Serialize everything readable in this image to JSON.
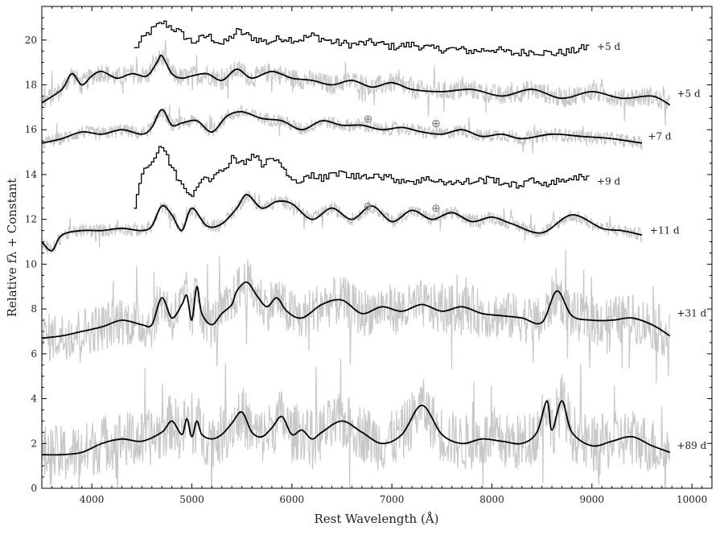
{
  "chart_data": {
    "type": "line",
    "xlabel": "Rest Wavelength (Å)",
    "ylabel": "Relative fλ + Constant",
    "xlim": [
      3500,
      10200
    ],
    "ylim": [
      0,
      21.5
    ],
    "x_ticks": [
      4000,
      5000,
      6000,
      7000,
      8000,
      9000,
      10000
    ],
    "x_tick_labels": [
      "4000",
      "5000",
      "6000",
      "7000",
      "8000",
      "9000",
      "10000"
    ],
    "y_ticks": [
      0,
      2,
      4,
      6,
      8,
      10,
      12,
      14,
      16,
      18,
      20
    ],
    "y_tick_labels": [
      "0",
      "2",
      "4",
      "6",
      "8",
      "10",
      "12",
      "14",
      "16",
      "18",
      "20"
    ],
    "grid": false,
    "colors": {
      "smoothed": "#000000",
      "raw": "#c8c8c8",
      "telluric": "#888888"
    },
    "telluric_marker": "⊕",
    "series": [
      {
        "label": "+5 d",
        "style": "step",
        "label_at": [
          9050,
          19.7
        ],
        "x": [
          4420,
          4550,
          4700,
          4850,
          5000,
          5150,
          5300,
          5450,
          5600,
          5750,
          5900,
          6050,
          6200,
          6400,
          6600,
          6800,
          7000,
          7200,
          7400,
          7600,
          7800,
          8000,
          8200,
          8400,
          8600,
          8800,
          8950
        ],
        "y": [
          19.6,
          20.3,
          20.8,
          20.4,
          19.9,
          20.2,
          19.8,
          20.4,
          20.1,
          19.9,
          20.1,
          20.0,
          20.2,
          19.9,
          19.8,
          19.9,
          19.7,
          19.8,
          19.6,
          19.6,
          19.5,
          19.6,
          19.4,
          19.5,
          19.4,
          19.5,
          19.7
        ]
      },
      {
        "label": "+5 d",
        "style": "smooth",
        "label_at": [
          9850,
          17.6
        ],
        "raw_noise": 0.45,
        "x": [
          3500,
          3700,
          3800,
          3900,
          4000,
          4100,
          4250,
          4400,
          4550,
          4650,
          4700,
          4800,
          4900,
          5000,
          5150,
          5300,
          5450,
          5600,
          5800,
          6000,
          6200,
          6400,
          6600,
          6800,
          7000,
          7200,
          7500,
          7800,
          8100,
          8400,
          8700,
          9000,
          9300,
          9600,
          9780
        ],
        "y": [
          17.2,
          17.8,
          18.5,
          18.0,
          18.4,
          18.6,
          18.3,
          18.5,
          18.4,
          19.0,
          19.3,
          18.5,
          18.3,
          18.4,
          18.5,
          18.2,
          18.7,
          18.3,
          18.6,
          18.3,
          18.2,
          18.0,
          18.2,
          17.9,
          18.1,
          17.8,
          17.7,
          17.8,
          17.5,
          17.8,
          17.4,
          17.7,
          17.4,
          17.5,
          17.1
        ]
      },
      {
        "label": "+7 d",
        "style": "smooth",
        "label_at": [
          9560,
          15.7
        ],
        "raw_noise": 0.3,
        "x": [
          3500,
          3700,
          3900,
          4100,
          4300,
          4500,
          4600,
          4700,
          4800,
          4900,
          5050,
          5200,
          5350,
          5500,
          5700,
          5900,
          6100,
          6300,
          6500,
          6700,
          6900,
          7100,
          7300,
          7500,
          7700,
          7900,
          8100,
          8300,
          8600,
          8900,
          9200,
          9500
        ],
        "y": [
          15.4,
          15.6,
          15.9,
          15.8,
          16.0,
          15.8,
          16.1,
          16.9,
          16.2,
          16.3,
          16.4,
          15.9,
          16.6,
          16.8,
          16.5,
          16.4,
          16.0,
          16.4,
          16.2,
          16.2,
          16.0,
          16.1,
          15.9,
          15.8,
          16.0,
          15.7,
          15.8,
          15.6,
          15.8,
          15.7,
          15.6,
          15.4
        ]
      },
      {
        "label": "+9 d",
        "style": "step",
        "label_at": [
          9050,
          13.7
        ],
        "x": [
          4420,
          4500,
          4600,
          4700,
          4800,
          4900,
          5000,
          5100,
          5200,
          5300,
          5400,
          5500,
          5600,
          5700,
          5800,
          5900,
          6000,
          6150,
          6300,
          6450,
          6600,
          6800,
          7000,
          7200,
          7400,
          7600,
          7800,
          8000,
          8200,
          8400,
          8600,
          8800,
          8950
        ],
        "y": [
          12.6,
          14.2,
          14.6,
          15.3,
          14.2,
          13.5,
          13.1,
          14.0,
          13.8,
          14.2,
          14.8,
          14.5,
          14.9,
          14.4,
          14.8,
          14.3,
          13.6,
          14.0,
          13.8,
          14.1,
          13.9,
          14.0,
          13.8,
          13.7,
          13.8,
          13.6,
          13.7,
          13.8,
          13.5,
          13.7,
          13.6,
          13.9,
          13.8
        ]
      },
      {
        "label": "+11 d",
        "style": "smooth",
        "label_at": [
          9580,
          11.5
        ],
        "raw_noise": 0.3,
        "x": [
          3500,
          3600,
          3700,
          3900,
          4100,
          4300,
          4500,
          4600,
          4700,
          4800,
          4900,
          5000,
          5150,
          5300,
          5450,
          5550,
          5700,
          5850,
          6000,
          6200,
          6400,
          6600,
          6800,
          7000,
          7200,
          7400,
          7600,
          7800,
          8000,
          8200,
          8500,
          8800,
          9100,
          9300,
          9500
        ],
        "y": [
          11.0,
          10.6,
          11.3,
          11.5,
          11.5,
          11.6,
          11.5,
          11.7,
          12.6,
          12.2,
          11.5,
          12.5,
          11.7,
          11.8,
          12.5,
          13.1,
          12.5,
          12.8,
          12.7,
          12.0,
          12.5,
          12.0,
          12.6,
          11.9,
          12.4,
          12.0,
          12.3,
          11.9,
          12.1,
          11.8,
          11.4,
          12.2,
          11.6,
          11.5,
          11.3
        ]
      },
      {
        "label": "+31 d",
        "style": "smooth",
        "label_at": [
          9850,
          7.8
        ],
        "raw_noise": 1.1,
        "x": [
          3500,
          3700,
          3900,
          4100,
          4300,
          4500,
          4600,
          4700,
          4800,
          4900,
          4950,
          5000,
          5050,
          5100,
          5200,
          5300,
          5400,
          5450,
          5550,
          5650,
          5750,
          5850,
          5950,
          6100,
          6300,
          6500,
          6700,
          6900,
          7100,
          7300,
          7500,
          7700,
          7900,
          8100,
          8300,
          8500,
          8650,
          8800,
          9000,
          9200,
          9400,
          9600,
          9780
        ],
        "y": [
          6.7,
          6.8,
          7.0,
          7.2,
          7.5,
          7.3,
          7.3,
          8.5,
          7.6,
          8.2,
          8.6,
          7.5,
          9.0,
          7.8,
          7.3,
          7.8,
          8.2,
          8.8,
          9.2,
          8.6,
          8.1,
          8.5,
          7.9,
          7.6,
          8.2,
          8.4,
          7.8,
          8.1,
          7.9,
          8.2,
          7.9,
          8.1,
          7.8,
          7.7,
          7.6,
          7.4,
          8.8,
          7.7,
          7.5,
          7.5,
          7.6,
          7.3,
          6.8
        ]
      },
      {
        "label": "+89 d",
        "style": "smooth",
        "label_at": [
          9850,
          1.9
        ],
        "raw_noise": 1.3,
        "x": [
          3500,
          3700,
          3900,
          4100,
          4300,
          4500,
          4700,
          4800,
          4900,
          4950,
          5000,
          5050,
          5100,
          5200,
          5300,
          5400,
          5500,
          5600,
          5700,
          5800,
          5900,
          6000,
          6100,
          6200,
          6300,
          6500,
          6700,
          6900,
          7100,
          7300,
          7500,
          7700,
          7900,
          8100,
          8300,
          8450,
          8550,
          8600,
          8700,
          8800,
          9000,
          9200,
          9400,
          9600,
          9780
        ],
        "y": [
          1.5,
          1.5,
          1.6,
          2.0,
          2.2,
          2.1,
          2.5,
          3.0,
          2.4,
          3.1,
          2.3,
          3.0,
          2.4,
          2.2,
          2.4,
          2.9,
          3.4,
          2.5,
          2.3,
          2.7,
          3.2,
          2.4,
          2.6,
          2.2,
          2.5,
          3.0,
          2.5,
          2.0,
          2.4,
          3.7,
          2.4,
          2.0,
          2.2,
          2.1,
          2.0,
          2.5,
          3.9,
          2.6,
          3.9,
          2.5,
          1.9,
          2.1,
          2.3,
          1.9,
          1.6
        ]
      }
    ],
    "telluric_markers": [
      {
        "x": 6760,
        "y": 16.5
      },
      {
        "x": 7440,
        "y": 16.3
      },
      {
        "x": 6760,
        "y": 12.6
      },
      {
        "x": 7440,
        "y": 12.5
      }
    ]
  }
}
